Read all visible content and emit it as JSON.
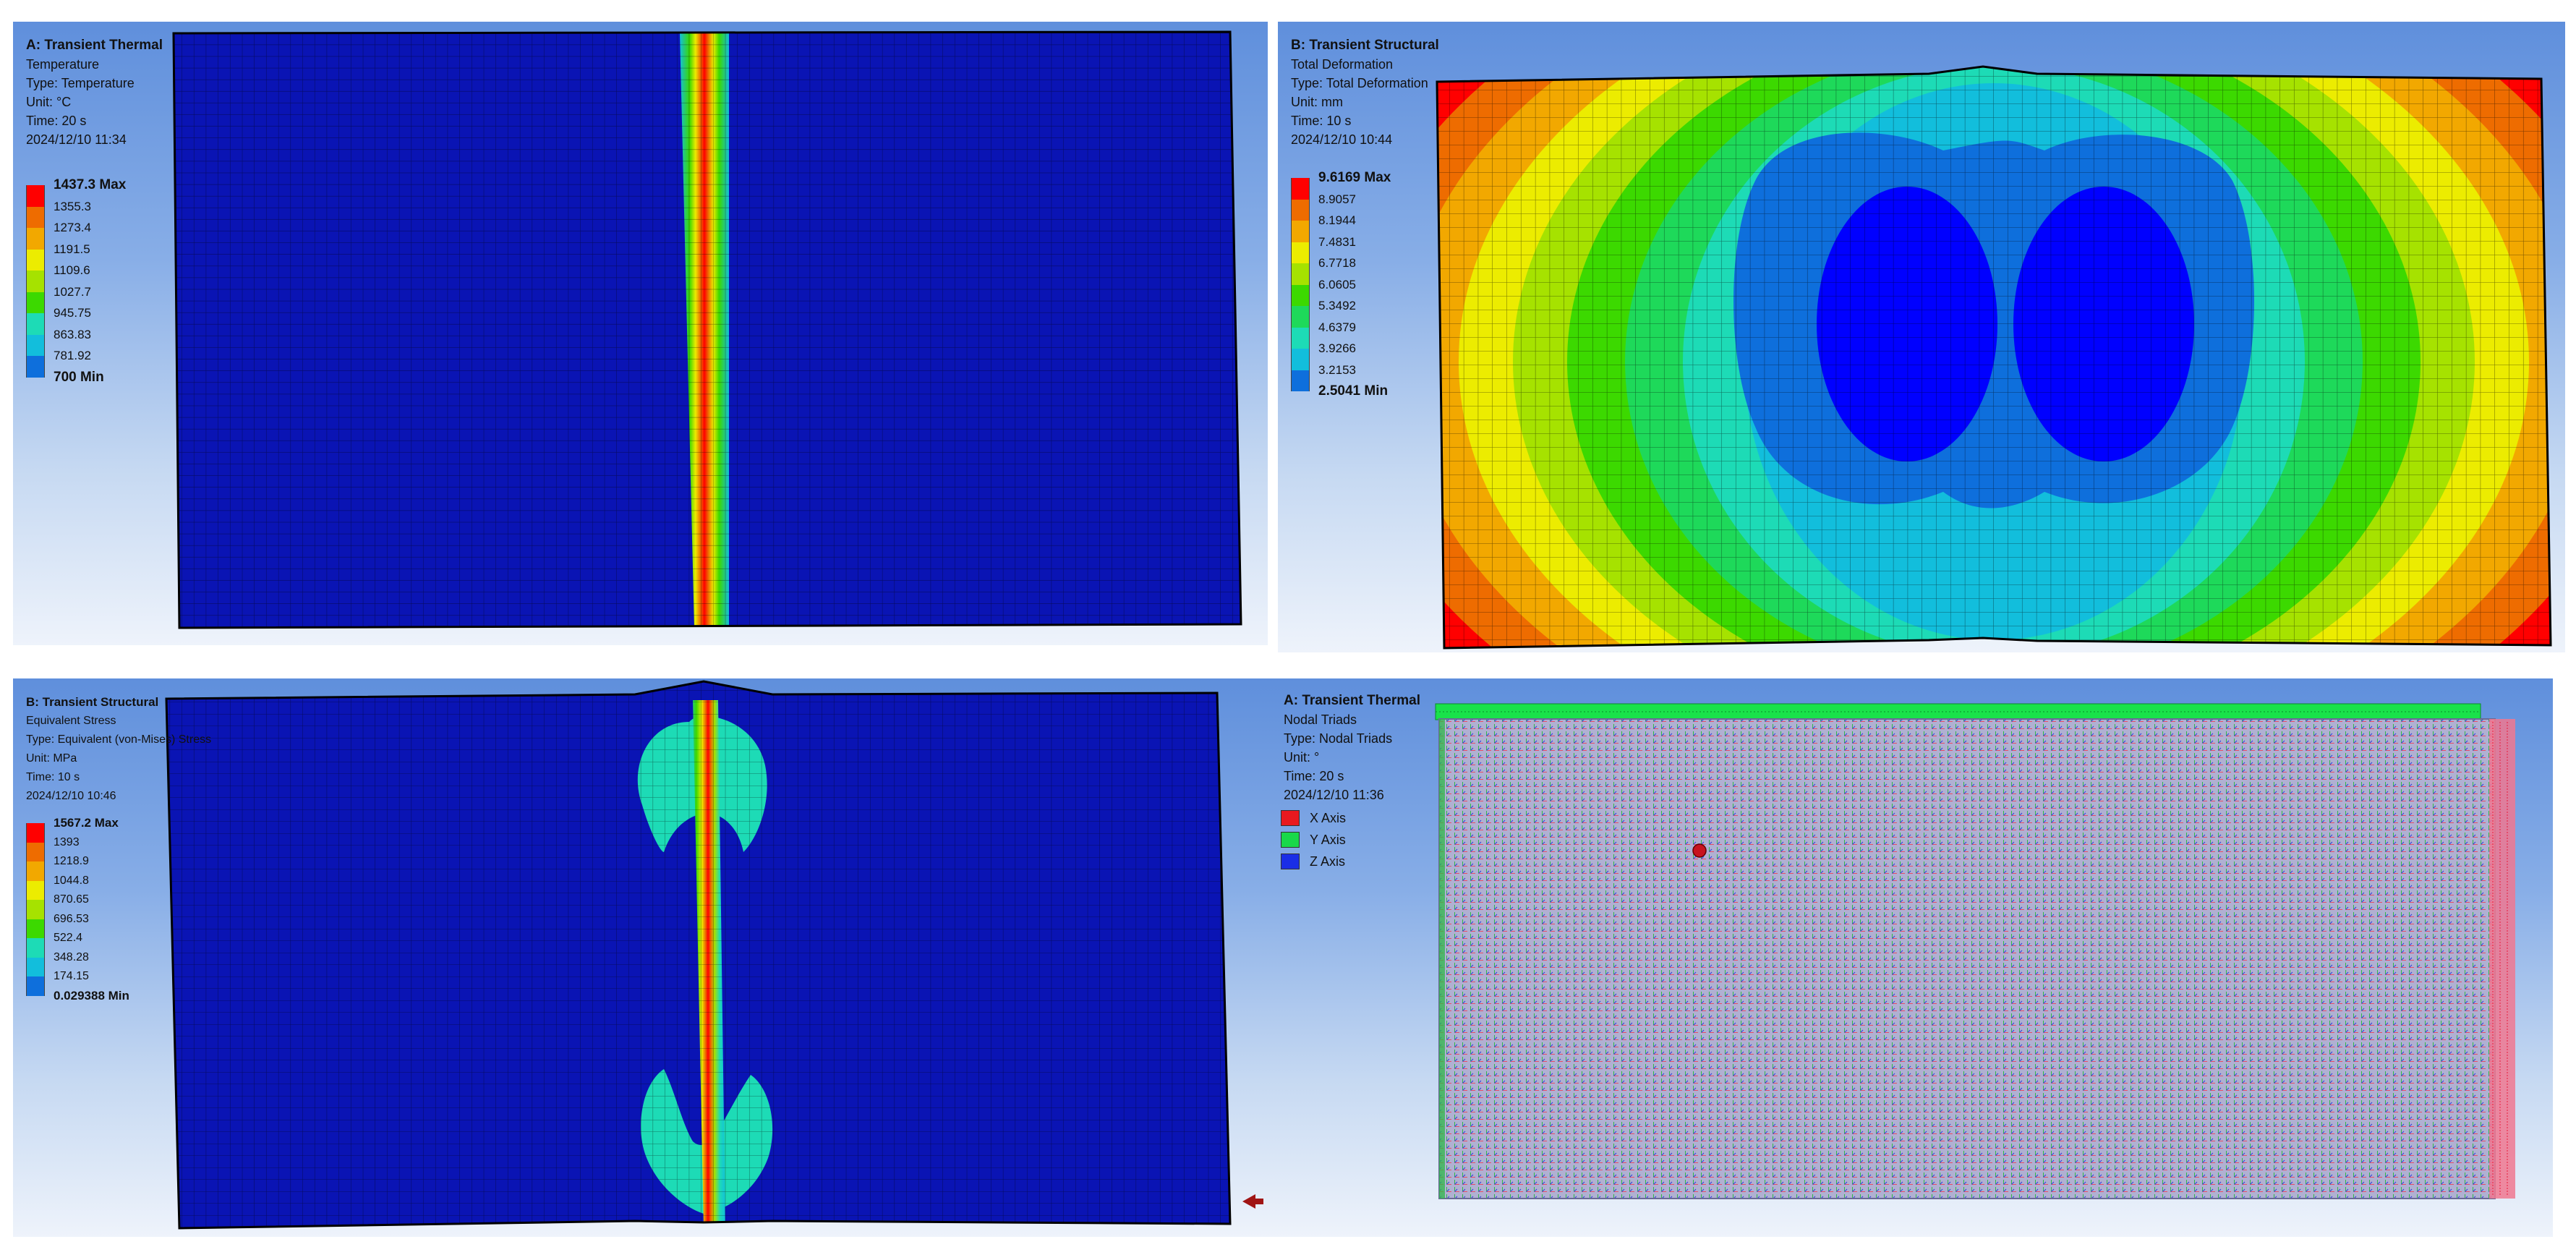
{
  "panels": {
    "temperature": {
      "title": "A: Transient Thermal",
      "lines": [
        "Temperature",
        "Type: Temperature",
        "Unit: °C",
        "Time: 20 s",
        "2024/12/10 11:34"
      ],
      "legend": [
        "1437.3 Max",
        "1355.3",
        "1273.4",
        "1191.5",
        "1109.6",
        "1027.7",
        "945.75",
        "863.83",
        "781.92",
        "700 Min"
      ]
    },
    "deformation": {
      "title": "B: Transient Structural",
      "lines": [
        "Total Deformation",
        "Type: Total Deformation",
        "Unit: mm",
        "Time: 10 s",
        "2024/12/10 10:44"
      ],
      "legend": [
        "9.6169 Max",
        "8.9057",
        "8.1944",
        "7.4831",
        "6.7718",
        "6.0605",
        "5.3492",
        "4.6379",
        "3.9266",
        "3.2153",
        "2.5041 Min"
      ]
    },
    "stress": {
      "title": "B: Transient Structural",
      "lines": [
        "Equivalent Stress",
        "Type: Equivalent (von-Mises) Stress",
        "Unit: MPa",
        "Time: 10 s",
        "2024/12/10 10:46"
      ],
      "legend": [
        "1567.2 Max",
        "1393",
        "1218.9",
        "1044.8",
        "870.65",
        "696.53",
        "522.4",
        "348.28",
        "174.15",
        "0.029388 Min"
      ]
    },
    "triads": {
      "title": "A: Transient Thermal",
      "lines": [
        "Nodal Triads",
        "Type: Nodal Triads",
        "Unit: °",
        "Time: 20 s",
        "2024/12/10 11:36"
      ],
      "axes": [
        {
          "label": "X Axis",
          "color": "#e8191f"
        },
        {
          "label": "Y Axis",
          "color": "#19d84a"
        },
        {
          "label": "Z Axis",
          "color": "#1a2ee6"
        }
      ]
    }
  },
  "colors": {
    "contour": [
      "#0000ff",
      "#0e6fdc",
      "#12bedc",
      "#1ddbb6",
      "#1ed95a",
      "#3cd900",
      "#a6e200",
      "#ecec00",
      "#f2a800",
      "#ee6c00",
      "#ff0000"
    ],
    "model_blue": "#0a14b4",
    "mesh_line": "#000000",
    "triad_body": "#a5a5cc"
  }
}
